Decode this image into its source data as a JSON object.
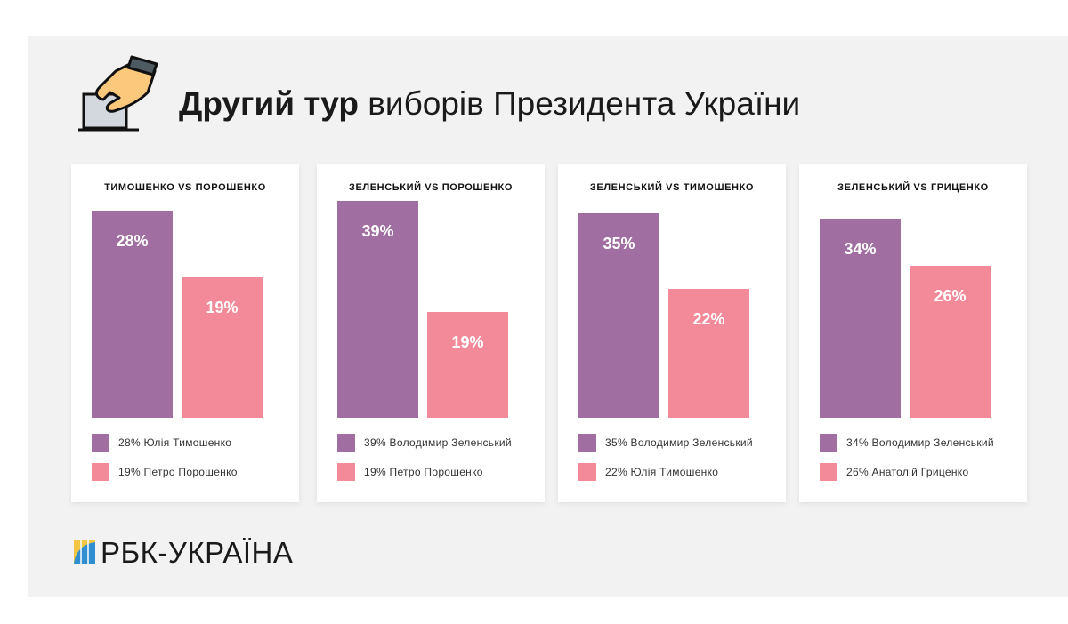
{
  "header": {
    "title_bold": "Другий тур",
    "title_rest": " виборів Президента України",
    "icon": "ballot-hand-icon"
  },
  "colors": {
    "first": "#a06ea0",
    "second": "#f28a9a",
    "panel": "#f2f2f2"
  },
  "chart_data": [
    {
      "type": "bar",
      "title": "ТИМОШЕНКО VS ПОРОШЕНКО",
      "categories": [
        "Юлія Тимошенко",
        "Петро Порошенко"
      ],
      "values": [
        28,
        19
      ],
      "labels": [
        "28%",
        "19%"
      ],
      "legend": [
        "28% Юлія Тимошенко",
        "19% Петро Порошенко"
      ],
      "ylim": [
        0,
        30
      ]
    },
    {
      "type": "bar",
      "title": "ЗЕЛЕНСЬКИЙ VS ПОРОШЕНКО",
      "categories": [
        "Володимир Зеленський",
        "Петро Порошенко"
      ],
      "values": [
        39,
        19
      ],
      "labels": [
        "39%",
        "19%"
      ],
      "legend": [
        "39% Володимир Зеленський",
        "19% Петро Порошенко"
      ],
      "ylim": [
        0,
        40
      ]
    },
    {
      "type": "bar",
      "title": "ЗЕЛЕНСЬКИЙ VS ТИМОШЕНКО",
      "categories": [
        "Володимир Зеленський",
        "Юлія Тимошенко"
      ],
      "values": [
        35,
        22
      ],
      "labels": [
        "35%",
        "22%"
      ],
      "legend": [
        "35% Володимир Зеленський",
        "22% Юлія Тимошенко"
      ],
      "ylim": [
        0,
        38
      ]
    },
    {
      "type": "bar",
      "title": "ЗЕЛЕНСЬКИЙ VS ГРИЦЕНКО",
      "categories": [
        "Володимир Зеленський",
        "Анатолій Гриценко"
      ],
      "values": [
        34,
        26
      ],
      "labels": [
        "34%",
        "26%"
      ],
      "legend": [
        "34% Володимир Зеленський",
        "26% Анатолій Гриценко"
      ],
      "ylim": [
        0,
        38
      ]
    }
  ],
  "footer": {
    "logo_text": "РБК-УКРАЇНА"
  }
}
